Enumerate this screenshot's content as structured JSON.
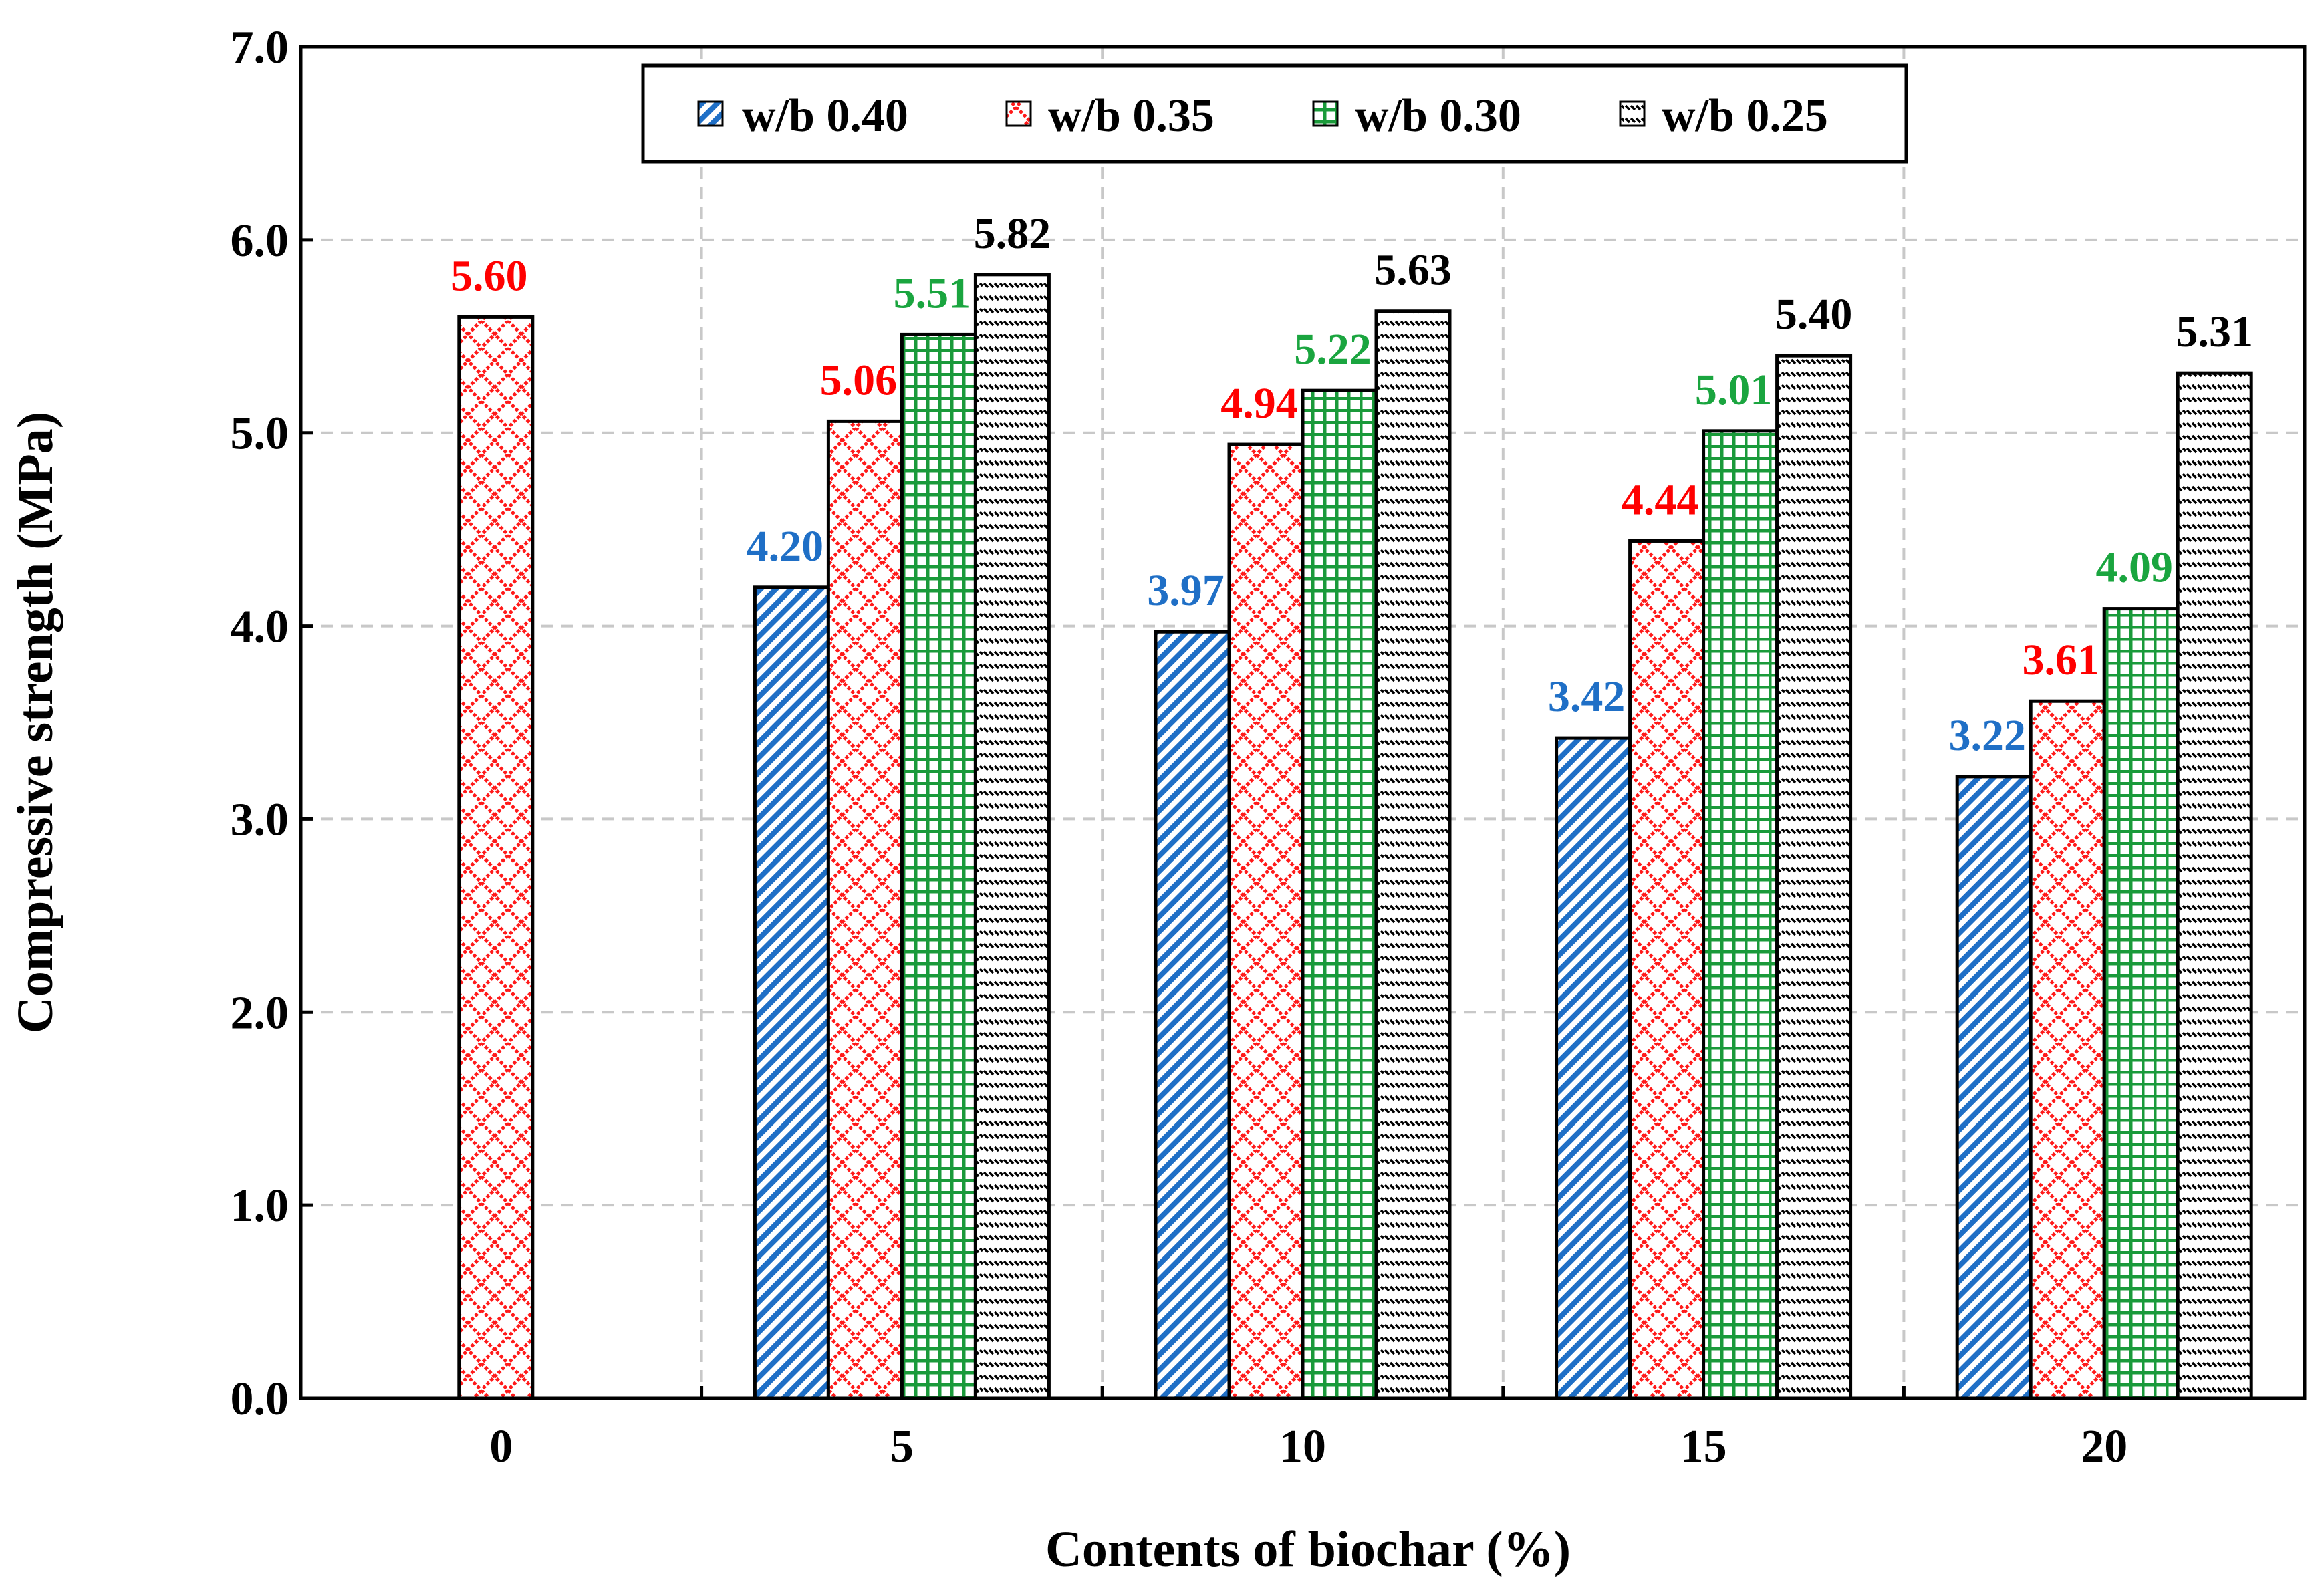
{
  "chart_data": {
    "type": "bar",
    "title": "",
    "xlabel": "Contents of biochar (%)",
    "ylabel": "Compressive strength (MPa)",
    "categories": [
      "0",
      "5",
      "10",
      "15",
      "20"
    ],
    "ylim": [
      0,
      7
    ],
    "yticks": [
      0,
      1,
      2,
      3,
      4,
      5,
      6,
      7
    ],
    "ytick_labels": [
      "0.0",
      "1.0",
      "2.0",
      "3.0",
      "4.0",
      "5.0",
      "6.0",
      "7.0"
    ],
    "grid": true,
    "legend_position": "top",
    "series": [
      {
        "name": "w/b 0.40",
        "color": "#1f6fc6",
        "label_color": "#1f6fc6",
        "pattern": "diagonal-stripes",
        "values": [
          null,
          4.2,
          3.97,
          3.42,
          3.22
        ],
        "labels": [
          null,
          "4.20",
          "3.97",
          "3.42",
          "3.22"
        ]
      },
      {
        "name": "w/b 0.35",
        "color": "#ff1a1a",
        "label_color": "#ff0000",
        "pattern": "diamond-lattice",
        "values": [
          5.6,
          5.06,
          4.94,
          4.44,
          3.61
        ],
        "labels": [
          "5.60",
          "5.06",
          "4.94",
          "4.44",
          "3.61"
        ]
      },
      {
        "name": "w/b 0.30",
        "color": "#1a9a3a",
        "label_color": "#1aa53f",
        "pattern": "grid",
        "values": [
          null,
          5.51,
          5.22,
          5.01,
          4.09
        ],
        "labels": [
          null,
          "5.51",
          "5.22",
          "5.01",
          "4.09"
        ]
      },
      {
        "name": "w/b 0.25",
        "color": "#000000",
        "label_color": "#000000",
        "pattern": "dashes",
        "values": [
          null,
          5.82,
          5.63,
          5.4,
          5.31
        ],
        "labels": [
          null,
          "5.82",
          "5.63",
          "5.40",
          "5.31"
        ]
      }
    ]
  }
}
